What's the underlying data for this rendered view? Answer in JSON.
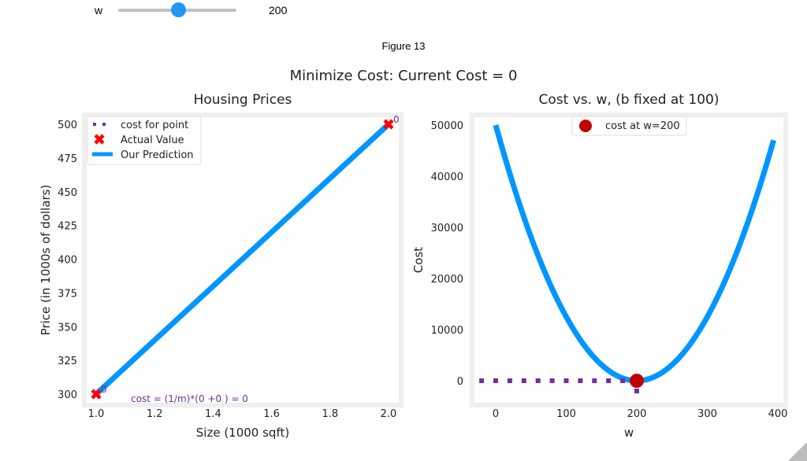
{
  "slider": {
    "label": "w",
    "value": "200",
    "fraction": 0.5
  },
  "figure_title": "Figure 13",
  "suptitle": "Minimize Cost: Current Cost = 0",
  "chart_data": [
    {
      "type": "line",
      "title": "Housing Prices",
      "xlabel": "Size (1000 sqft)",
      "ylabel": "Price (in 1000s of dollars)",
      "xlim": [
        0.97,
        2.03
      ],
      "ylim": [
        295,
        510
      ],
      "xticks": [
        "1.0",
        "1.2",
        "1.4",
        "1.6",
        "1.8",
        "2.0"
      ],
      "yticks": [
        "300",
        "325",
        "350",
        "375",
        "400",
        "425",
        "450",
        "475",
        "500"
      ],
      "actual": {
        "x": [
          1.0,
          2.0
        ],
        "y": [
          300,
          500
        ],
        "labels": [
          "0",
          "0"
        ]
      },
      "prediction": {
        "x": [
          1.0,
          2.0
        ],
        "y": [
          300,
          500
        ]
      },
      "annotation": "cost = (1/m)*(0 +0 ) = 0",
      "legend": [
        "cost for point",
        "Actual Value",
        "Our Prediction"
      ],
      "legend_loc": "upper-left"
    },
    {
      "type": "line",
      "title": "Cost vs. w, (b fixed at 100)",
      "xlabel": "w",
      "ylabel": "Cost",
      "xlim": [
        -37,
        410
      ],
      "ylim": [
        -5000,
        52000
      ],
      "xticks": [
        "0",
        "100",
        "200",
        "300",
        "400"
      ],
      "yticks": [
        "0",
        "10000",
        "20000",
        "30000",
        "40000",
        "50000"
      ],
      "b": 100,
      "data_x": [
        1,
        2
      ],
      "data_y": [
        300,
        500
      ],
      "w_range": [
        0,
        395
      ],
      "current": {
        "w": 200,
        "cost": 0
      },
      "cost_points": {
        "w_start": -20,
        "w_end": 200,
        "y": 0
      },
      "legend": [
        "cost at w=200"
      ],
      "legend_loc": "upper-center"
    }
  ],
  "colors": {
    "blue": "#0096ff",
    "red": "#ff0000",
    "dark_red": "#c00000",
    "purple": "#7030a0",
    "frame": "#efefef"
  }
}
